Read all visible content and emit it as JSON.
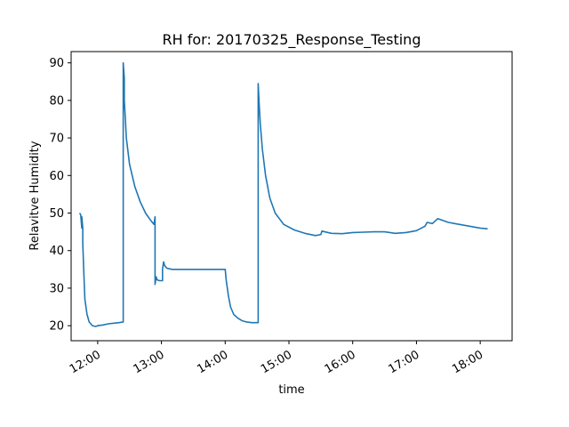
{
  "chart_data": {
    "type": "line",
    "title": "RH for: 20170325_Response_Testing",
    "xlabel": "time",
    "ylabel": "Relavitve Humidity",
    "xlim": [
      "11:35",
      "18:30"
    ],
    "ylim": [
      16,
      93
    ],
    "grid": false,
    "x_ticks": [
      "12:00",
      "13:00",
      "14:00",
      "15:00",
      "16:00",
      "17:00",
      "18:00"
    ],
    "y_ticks": [
      20,
      30,
      40,
      50,
      60,
      70,
      80,
      90
    ],
    "series": [
      {
        "color": "#1f77b4",
        "x": [
          "11:43",
          "11:44",
          "11:45",
          "11:45",
          "11:46",
          "11:46",
          "11:47",
          "11:48",
          "11:50",
          "11:52",
          "11:55",
          "11:58",
          "12:00",
          "12:05",
          "12:10",
          "12:20",
          "12:24",
          "12:24",
          "12:25",
          "12:25",
          "12:26",
          "12:27",
          "12:30",
          "12:35",
          "12:40",
          "12:45",
          "12:50",
          "12:53",
          "12:54",
          "12:54",
          "12:54",
          "12:55",
          "12:56",
          "12:58",
          "13:01",
          "13:01",
          "13:02",
          "13:03",
          "13:05",
          "13:10",
          "13:20",
          "13:30",
          "13:40",
          "13:50",
          "13:58",
          "14:00",
          "14:01",
          "14:03",
          "14:05",
          "14:08",
          "14:12",
          "14:16",
          "14:20",
          "14:25",
          "14:31",
          "14:31",
          "14:32",
          "14:33",
          "14:35",
          "14:38",
          "14:42",
          "14:47",
          "14:55",
          "15:05",
          "15:15",
          "15:25",
          "15:30",
          "15:31",
          "15:40",
          "15:50",
          "16:00",
          "16:10",
          "16:20",
          "16:30",
          "16:40",
          "16:50",
          "17:00",
          "17:08",
          "17:10",
          "17:15",
          "17:20",
          "17:25",
          "17:30",
          "17:40",
          "17:50",
          "18:00",
          "18:07"
        ],
        "values": [
          50,
          49.5,
          46,
          49,
          46,
          42,
          34,
          27,
          23,
          21,
          20,
          19.8,
          20,
          20.2,
          20.5,
          20.8,
          21,
          90,
          86,
          80,
          75,
          70,
          63,
          57,
          53,
          50,
          48,
          47,
          49,
          33,
          31,
          33,
          32.2,
          32,
          32,
          35,
          37,
          36,
          35.3,
          35,
          35,
          35,
          35,
          35,
          35,
          35,
          32,
          28,
          25,
          23,
          22,
          21.3,
          21,
          20.8,
          20.8,
          84.5,
          79,
          74,
          67,
          60,
          54,
          50,
          47,
          45.5,
          44.6,
          44,
          44.3,
          45.2,
          44.6,
          44.5,
          44.8,
          44.9,
          45,
          45,
          44.6,
          44.8,
          45.3,
          46.5,
          47.5,
          47.2,
          48.5,
          48,
          47.5,
          47,
          46.5,
          46,
          45.8
        ]
      }
    ]
  }
}
